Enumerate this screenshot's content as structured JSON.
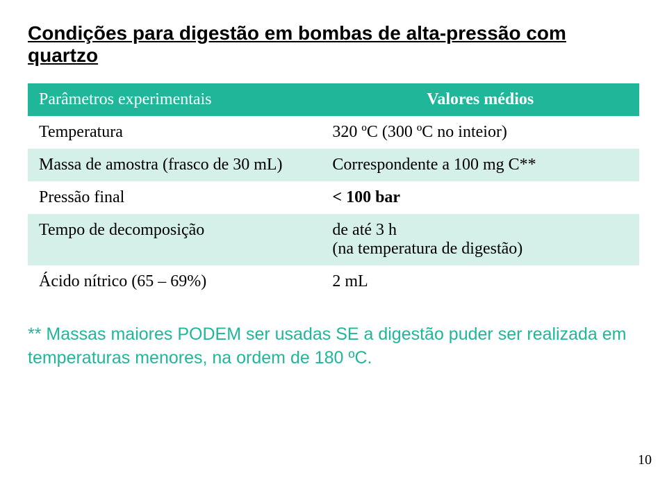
{
  "title": "Condições para digestão em bombas de alta-pressão com quartzo",
  "table": {
    "header_bg": "#1fb699",
    "header_fg": "#ffffff",
    "band_bg": "#d4f0e9",
    "columns": {
      "left_header": "Parâmetros experimentais",
      "right_header": "Valores médios"
    },
    "rows": [
      {
        "left": "Temperatura",
        "right": "320 ºC (300 ºC no inteior)",
        "band": false
      },
      {
        "left": "Massa de amostra (frasco de 30 mL)",
        "right": "Correspondente a 100 mg C**",
        "band": true
      },
      {
        "left": "Pressão final",
        "right": "< 100 bar",
        "band": false,
        "bold_right": true
      },
      {
        "left": "Tempo de decomposição",
        "right": "de até 3 h\n(na temperatura de digestão)",
        "band": true
      },
      {
        "left": "Ácido nítrico (65 – 69%)",
        "right": "2 mL",
        "band": false
      }
    ]
  },
  "footnote": {
    "text": "** Massas maiores PODEM ser usadas SE a digestão puder ser realizada em temperaturas menores, na ordem de 180 ºC.",
    "color": "#1fb699"
  },
  "page_number": "10"
}
